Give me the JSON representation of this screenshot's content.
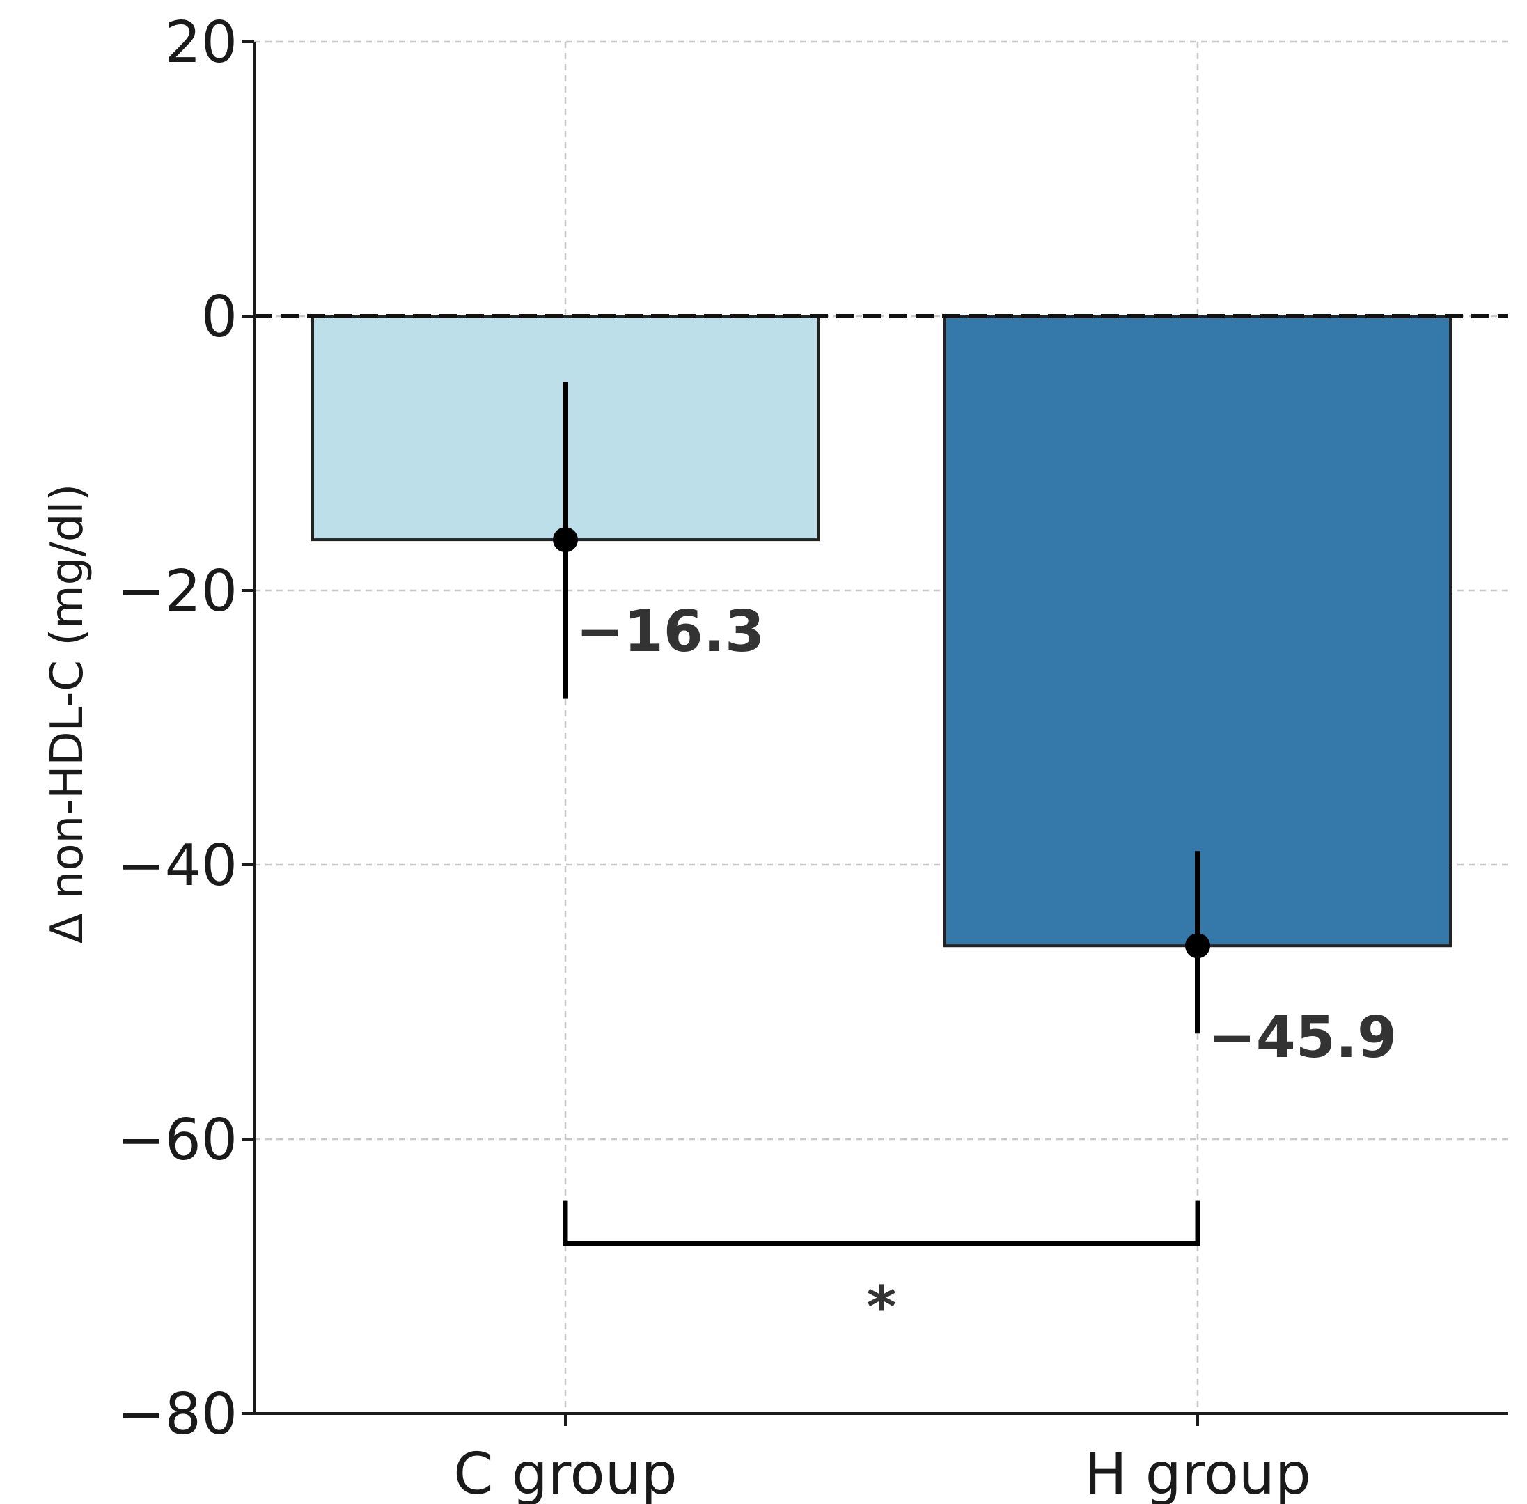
{
  "chart_data": {
    "type": "bar",
    "title": "",
    "xlabel": "",
    "ylabel": "Δ non-HDL-C (mg/dl)",
    "categories": [
      "C group",
      "H group"
    ],
    "values": [
      -16.3,
      -45.9
    ],
    "value_labels": [
      "−16.3",
      "−45.9"
    ],
    "error_bars": [
      {
        "low": -27.9,
        "high": -4.8
      },
      {
        "low": -52.3,
        "high": -39.0
      }
    ],
    "colors": [
      "#bcdfea",
      "#3479a9"
    ],
    "edge_color": "#222222",
    "ylim": [
      -80,
      20
    ],
    "yticks": [
      20,
      0,
      -20,
      -40,
      -60,
      -80
    ],
    "ytick_labels": [
      "20",
      "0",
      "−20",
      "−40",
      "−60",
      "−80"
    ],
    "grid": true,
    "reference_line": 0,
    "significance": {
      "between": [
        "C group",
        "H group"
      ],
      "label": "*",
      "bracket_bottom": -64.5,
      "bracket_top": -67.6
    }
  }
}
